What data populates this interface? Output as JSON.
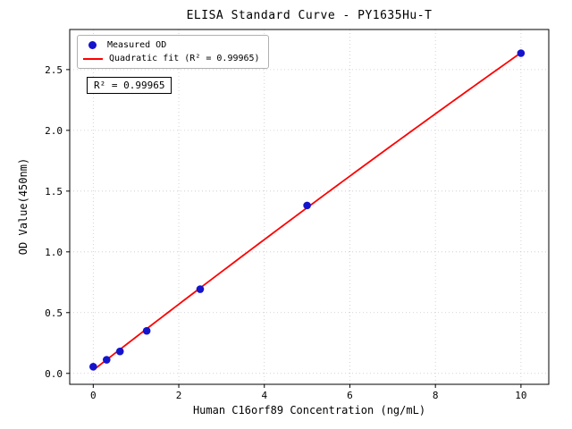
{
  "figure": {
    "background": "#ffffff",
    "grid_color": "#c8c8c8",
    "axis_color": "#000000"
  },
  "chart_data": {
    "type": "scatter",
    "title": "ELISA Standard Curve - PY1635Hu-T",
    "xlabel": "Human C16orf89 Concentration (ng/mL)",
    "ylabel": "OD Value(450nm)",
    "xlim": [
      -0.55,
      10.65
    ],
    "ylim": [
      -0.09,
      2.83
    ],
    "xticks": [
      0,
      2,
      4,
      6,
      8,
      10
    ],
    "yticks": [
      0.0,
      0.5,
      1.0,
      1.5,
      2.0,
      2.5
    ],
    "grid": true,
    "legend_position": "upper left",
    "annotation": "R² = 0.99965",
    "series": [
      {
        "name": "Measured OD",
        "type": "scatter",
        "color": "#1414cd",
        "x": [
          0,
          0.313,
          0.625,
          1.25,
          2.5,
          5,
          10
        ],
        "y": [
          0.055,
          0.112,
          0.181,
          0.35,
          0.693,
          1.382,
          2.635
        ]
      },
      {
        "name": "Quadratic fit (R² = 0.99965)",
        "type": "line",
        "color": "#ff0000",
        "fit": "quadratic",
        "x_range": [
          0,
          10
        ]
      }
    ]
  }
}
